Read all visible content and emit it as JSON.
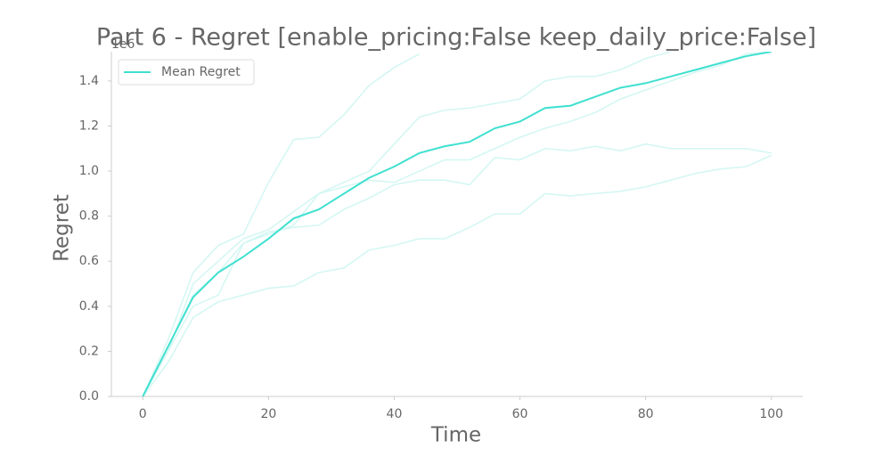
{
  "chart_data": {
    "type": "line",
    "title": "Part 6 - Regret [enable_pricing:False keep_daily_price:False]",
    "x_label": "Time",
    "y_label": "Regret",
    "y_offset_label": "1e6",
    "x": [
      0,
      4,
      8,
      12,
      16,
      20,
      24,
      28,
      32,
      36,
      40,
      44,
      48,
      52,
      56,
      60,
      64,
      68,
      72,
      76,
      80,
      84,
      88,
      92,
      96,
      100
    ],
    "series": [
      {
        "color": "#d4f7f3",
        "values": [
          0,
          0.25,
          0.55,
          0.67,
          0.72,
          0.95,
          1.14,
          1.15,
          1.25,
          1.38,
          1.46,
          1.52,
          null,
          null,
          null,
          null,
          null,
          null,
          null,
          null,
          null,
          null,
          null,
          null,
          null,
          null
        ]
      },
      {
        "color": "#d4f7f3",
        "values": [
          0,
          0.2,
          0.5,
          0.6,
          0.7,
          0.74,
          0.82,
          0.9,
          0.95,
          1.0,
          1.12,
          1.24,
          1.27,
          1.28,
          1.3,
          1.32,
          1.4,
          1.42,
          1.42,
          1.45,
          1.5,
          1.53,
          null,
          null,
          null,
          null
        ]
      },
      {
        "color": "#d4f7f3",
        "values": [
          0,
          0.22,
          0.45,
          0.55,
          0.68,
          0.72,
          0.76,
          0.9,
          0.93,
          0.96,
          0.95,
          1.0,
          1.05,
          1.05,
          1.1,
          1.15,
          1.19,
          1.22,
          1.26,
          1.32,
          1.36,
          1.4,
          1.44,
          1.47,
          1.52,
          1.53
        ]
      },
      {
        "color": "#d4f7f3",
        "values": [
          0,
          0.2,
          0.4,
          0.45,
          0.68,
          0.73,
          0.75,
          0.76,
          0.83,
          0.88,
          0.94,
          0.96,
          0.96,
          0.94,
          1.06,
          1.05,
          1.1,
          1.09,
          1.11,
          1.09,
          1.12,
          1.1,
          1.1,
          1.1,
          1.1,
          1.08
        ]
      },
      {
        "color": "#d4f7f3",
        "values": [
          0,
          0.15,
          0.35,
          0.42,
          0.45,
          0.48,
          0.49,
          0.55,
          0.57,
          0.65,
          0.67,
          0.7,
          0.7,
          0.75,
          0.81,
          0.81,
          0.9,
          0.89,
          0.9,
          0.91,
          0.93,
          0.96,
          0.99,
          1.01,
          1.02,
          1.07
        ]
      },
      {
        "name": "Mean Regret",
        "color": "#40e0d0",
        "values": [
          0,
          0.22,
          0.44,
          0.55,
          0.62,
          0.7,
          0.79,
          0.83,
          0.9,
          0.97,
          1.02,
          1.08,
          1.11,
          1.13,
          1.19,
          1.22,
          1.28,
          1.29,
          1.33,
          1.37,
          1.39,
          1.42,
          1.45,
          1.48,
          1.51,
          1.53
        ]
      }
    ],
    "xlim": [
      -5,
      105
    ],
    "xticks": [
      0,
      20,
      40,
      60,
      80,
      100
    ],
    "ylim": [
      0,
      1.53
    ],
    "yticks": [
      {
        "value": 0,
        "label": "0.0"
      },
      0.2,
      0.4,
      0.6,
      0.8,
      {
        "value": 1,
        "label": "1.0"
      },
      1.2,
      1.4
    ],
    "legend": "upper left"
  }
}
